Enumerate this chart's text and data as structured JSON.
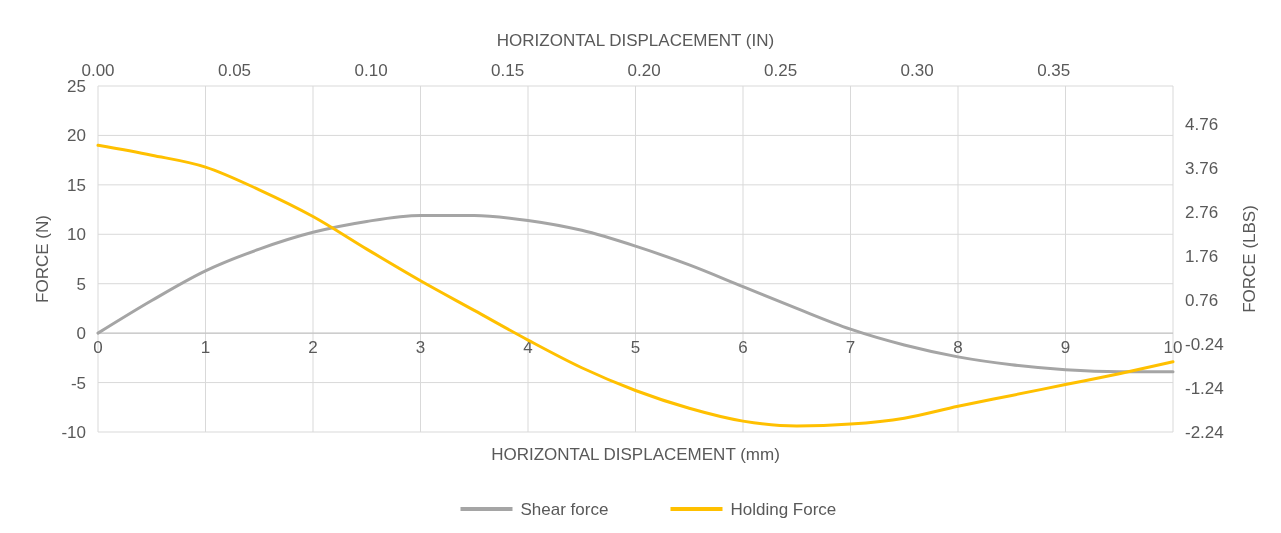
{
  "chart_data": {
    "type": "line",
    "xlabel": "HORIZONTAL DISPLACEMENT (mm)",
    "ylabel": "FORCE (N)",
    "y2label": "FORCE (LBS)",
    "x2label": "HORIZONTAL DISPLACEMENT (IN)",
    "xlim": [
      0,
      10
    ],
    "xticks": [
      0,
      1,
      2,
      3,
      4,
      5,
      6,
      7,
      8,
      9,
      10
    ],
    "ylim": [
      -10,
      25
    ],
    "yticks": [
      -10,
      -5,
      0,
      5,
      10,
      15,
      20,
      25
    ],
    "y2lim": [
      -2.248,
      5.62
    ],
    "y2ticks": [
      -2.24,
      -1.24,
      -0.24,
      0.76,
      1.76,
      2.76,
      3.76,
      4.76
    ],
    "x2lim": [
      0,
      0.3937
    ],
    "x2ticks": [
      {
        "value": 0,
        "label": "0.00"
      },
      {
        "value": 0.05,
        "label": "0.05"
      },
      {
        "value": 0.1,
        "label": "0.10"
      },
      {
        "value": 0.15,
        "label": "0.15"
      },
      {
        "value": 0.2,
        "label": "0.20"
      },
      {
        "value": 0.25,
        "label": "0.25"
      },
      {
        "value": 0.3,
        "label": "0.30"
      },
      {
        "value": 0.35,
        "label": "0.35"
      }
    ],
    "grid": true,
    "legend": "bottom",
    "series": [
      {
        "name": "Shear force",
        "color": "#a5a5a5",
        "x": [
          0,
          0.5,
          1,
          1.5,
          2,
          2.5,
          3,
          3.5,
          4,
          4.5,
          5,
          5.5,
          6,
          6.5,
          7,
          7.5,
          8,
          8.5,
          9,
          9.5,
          10
        ],
        "values": [
          0,
          3.3,
          6.3,
          8.5,
          10.2,
          11.3,
          11.9,
          11.9,
          11.4,
          10.4,
          8.8,
          6.9,
          4.7,
          2.5,
          0.4,
          -1.2,
          -2.4,
          -3.2,
          -3.7,
          -3.9,
          -3.9
        ]
      },
      {
        "name": "Holding Force",
        "color": "#ffc000",
        "x": [
          0,
          0.5,
          1,
          1.5,
          2,
          2.5,
          3,
          3.5,
          4,
          4.5,
          5,
          5.5,
          6,
          6.5,
          7,
          7.5,
          8,
          8.5,
          9,
          9.5,
          10
        ],
        "values": [
          19,
          18,
          16.8,
          14.5,
          11.8,
          8.5,
          5.3,
          2.3,
          -0.7,
          -3.5,
          -5.8,
          -7.6,
          -8.9,
          -9.4,
          -9.2,
          -8.6,
          -7.4,
          -6.3,
          -5.2,
          -4.1,
          -2.9
        ]
      }
    ]
  }
}
